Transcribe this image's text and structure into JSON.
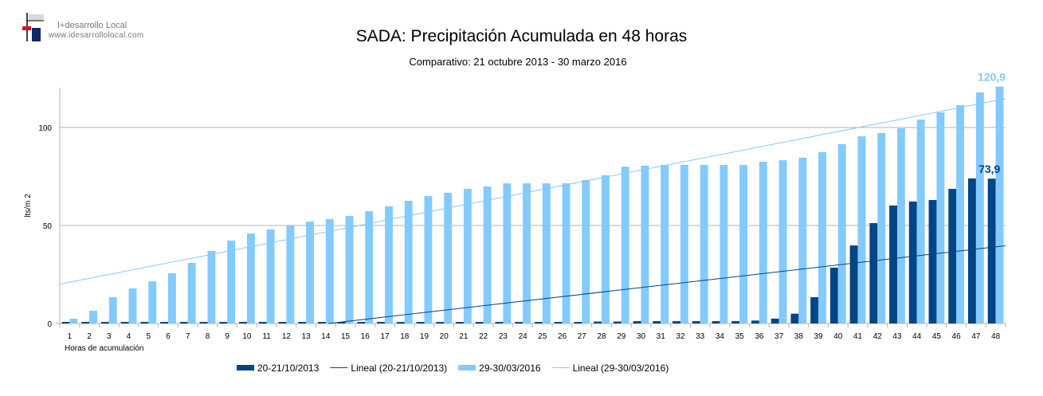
{
  "logo": {
    "name": "I+desarrollo Local",
    "url": "www.idesarrollolocal.com"
  },
  "chart_data": {
    "type": "bar",
    "title": "SADA: Precipitación Acumulada en 48 horas",
    "subtitle": "Comparativo: 21 octubre 2013 - 30 marzo 2016",
    "xlabel": "Horas de acumulación",
    "ylabel": "lts/m 2",
    "ylim": [
      0,
      122
    ],
    "yticks": [
      0,
      50,
      100
    ],
    "grid": true,
    "legend_position": "bottom",
    "categories": [
      "1",
      "2",
      "3",
      "4",
      "5",
      "6",
      "7",
      "8",
      "9",
      "10",
      "11",
      "12",
      "13",
      "14",
      "15",
      "16",
      "17",
      "18",
      "19",
      "20",
      "21",
      "22",
      "23",
      "24",
      "25",
      "26",
      "27",
      "28",
      "29",
      "30",
      "31",
      "32",
      "33",
      "34",
      "35",
      "36",
      "37",
      "38",
      "39",
      "40",
      "41",
      "42",
      "43",
      "44",
      "45",
      "46",
      "47",
      "48"
    ],
    "series": [
      {
        "name": "20-21/10/2013",
        "color": "#004586",
        "values": [
          0.8,
          0.8,
          0.8,
          0.8,
          0.8,
          0.8,
          0.8,
          0.8,
          0.8,
          0.8,
          0.8,
          0.8,
          0.8,
          0.8,
          0.8,
          0.8,
          0.8,
          0.8,
          0.8,
          0.8,
          0.8,
          0.8,
          0.8,
          0.8,
          0.8,
          0.8,
          0.8,
          1.0,
          1.0,
          1.2,
          1.2,
          1.2,
          1.2,
          1.2,
          1.2,
          1.5,
          2.5,
          5.0,
          13.4,
          28.5,
          39.8,
          51.2,
          60.2,
          62.2,
          63.0,
          68.7,
          74.0,
          73.9
        ],
        "end_label": "73,9"
      },
      {
        "name": "29-30/03/2016",
        "color": "#83caff",
        "values": [
          2.4,
          6.5,
          13.4,
          17.9,
          21.5,
          25.6,
          30.9,
          37.0,
          42.3,
          45.9,
          48.0,
          50.0,
          52.0,
          53.3,
          54.9,
          57.3,
          59.8,
          62.6,
          65.0,
          66.7,
          68.7,
          69.9,
          71.5,
          71.5,
          71.5,
          71.5,
          73.2,
          75.6,
          80.0,
          80.5,
          80.9,
          80.9,
          80.9,
          80.9,
          80.9,
          82.5,
          83.3,
          84.6,
          87.4,
          91.5,
          95.5,
          97.2,
          99.6,
          104.0,
          107.7,
          111.4,
          117.9,
          120.9
        ],
        "end_label": "120,9"
      }
    ],
    "trendlines": [
      {
        "name": "Lineal (20-21/10/2013)",
        "color": "#004586",
        "of": "20-21/10/2013"
      },
      {
        "name": "Lineal (29-30/03/2016)",
        "color": "#83caff",
        "of": "29-30/03/2016"
      }
    ]
  }
}
